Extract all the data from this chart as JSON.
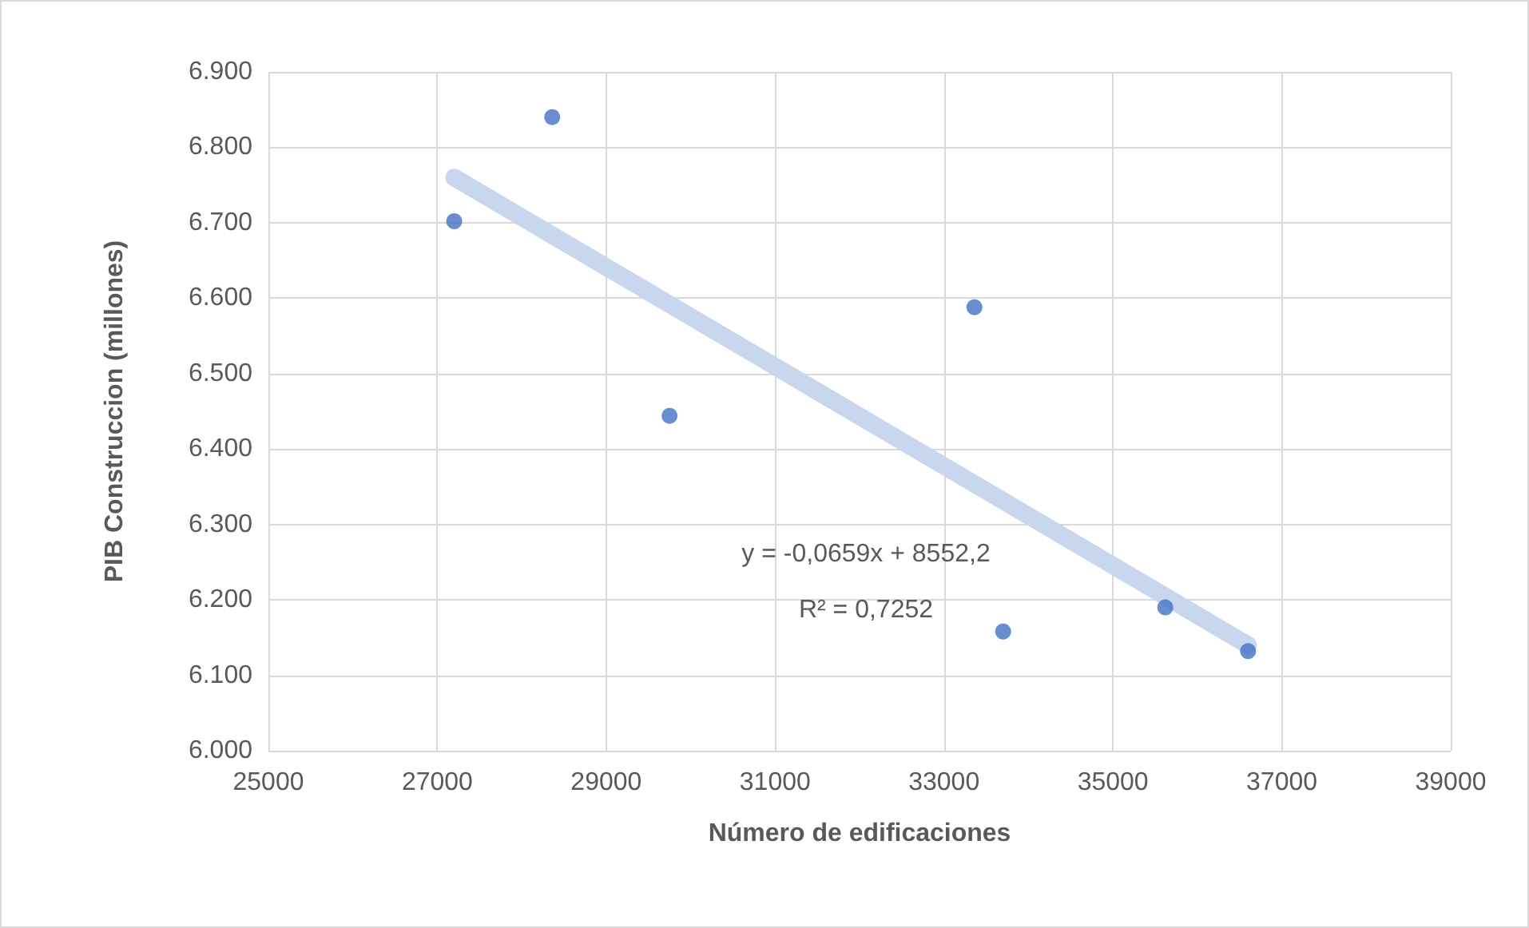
{
  "chart_data": {
    "type": "scatter",
    "xlabel": "Número de edificaciones",
    "ylabel": "PIB Construccion (millones)",
    "x": [
      27200,
      28360,
      29750,
      33360,
      33700,
      35620,
      36600
    ],
    "series": [
      {
        "color": "#4472c4",
        "marker": "circle",
        "values": [
          6702,
          6840,
          6444,
          6588,
          6158,
          6190,
          6132
        ]
      },
      {
        "type": "line",
        "color": "#c9d7ee",
        "marker": "none",
        "x": [
          27200,
          36600
        ],
        "values": [
          6760,
          6140
        ]
      }
    ],
    "annotations": [
      "y = -0,0659x + 8552,2",
      "R² = 0,7252"
    ],
    "xlim": [
      25000,
      39000
    ],
    "xticks": [
      25000,
      27000,
      29000,
      31000,
      33000,
      35000,
      37000,
      39000
    ],
    "ylim": [
      6000,
      6900
    ],
    "yticks": [
      {
        "value": 6000,
        "label": "6.000"
      },
      {
        "value": 6100,
        "label": "6.100"
      },
      {
        "value": 6200,
        "label": "6.200"
      },
      {
        "value": 6300,
        "label": "6.300"
      },
      {
        "value": 6400,
        "label": "6.400"
      },
      {
        "value": 6500,
        "label": "6.500"
      },
      {
        "value": 6600,
        "label": "6.600"
      },
      {
        "value": 6700,
        "label": "6.700"
      },
      {
        "value": 6800,
        "label": "6.800"
      },
      {
        "value": 6900,
        "label": "6.900"
      }
    ],
    "grid": true
  }
}
